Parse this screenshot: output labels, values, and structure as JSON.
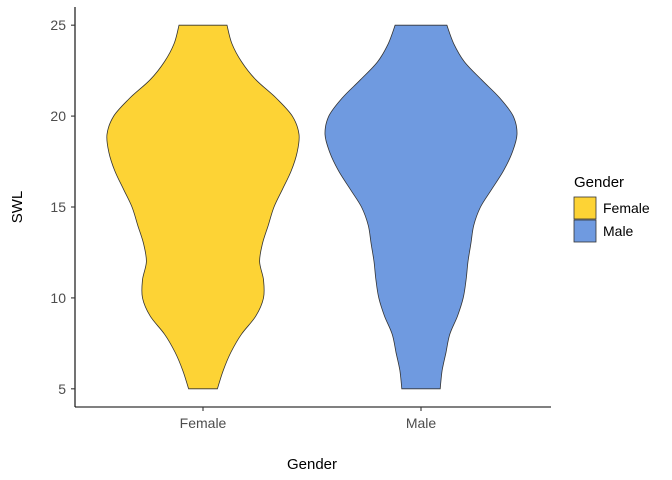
{
  "chart_data": {
    "type": "violin",
    "title": "",
    "xlabel": "Gender",
    "ylabel": "SWL",
    "ylim": [
      4,
      26
    ],
    "y_ticks": [
      5,
      10,
      15,
      20,
      25
    ],
    "grid": false,
    "legend": {
      "title": "Gender",
      "position": "right",
      "entries": [
        "Female",
        "Male"
      ]
    },
    "categories": [
      "Female",
      "Male"
    ],
    "colors": {
      "Female": "#FDD335",
      "Male": "#6F9AE0"
    },
    "series": [
      {
        "name": "Female",
        "range": [
          5,
          25
        ],
        "density_profile": [
          {
            "y": 5,
            "w": 0.15
          },
          {
            "y": 6,
            "w": 0.21
          },
          {
            "y": 7,
            "w": 0.29
          },
          {
            "y": 8,
            "w": 0.4
          },
          {
            "y": 9,
            "w": 0.55
          },
          {
            "y": 10,
            "w": 0.63
          },
          {
            "y": 11,
            "w": 0.63
          },
          {
            "y": 12,
            "w": 0.59
          },
          {
            "y": 13,
            "w": 0.62
          },
          {
            "y": 14,
            "w": 0.68
          },
          {
            "y": 15,
            "w": 0.74
          },
          {
            "y": 16,
            "w": 0.83
          },
          {
            "y": 17,
            "w": 0.92
          },
          {
            "y": 18,
            "w": 0.98
          },
          {
            "y": 19,
            "w": 1.0
          },
          {
            "y": 20,
            "w": 0.93
          },
          {
            "y": 21,
            "w": 0.76
          },
          {
            "y": 22,
            "w": 0.55
          },
          {
            "y": 23,
            "w": 0.4
          },
          {
            "y": 24,
            "w": 0.3
          },
          {
            "y": 25,
            "w": 0.25
          }
        ]
      },
      {
        "name": "Male",
        "range": [
          5,
          25
        ],
        "density_profile": [
          {
            "y": 5,
            "w": 0.2
          },
          {
            "y": 6,
            "w": 0.22
          },
          {
            "y": 7,
            "w": 0.26
          },
          {
            "y": 8,
            "w": 0.3
          },
          {
            "y": 9,
            "w": 0.38
          },
          {
            "y": 10,
            "w": 0.44
          },
          {
            "y": 11,
            "w": 0.47
          },
          {
            "y": 12,
            "w": 0.49
          },
          {
            "y": 13,
            "w": 0.52
          },
          {
            "y": 14,
            "w": 0.55
          },
          {
            "y": 15,
            "w": 0.62
          },
          {
            "y": 16,
            "w": 0.74
          },
          {
            "y": 17,
            "w": 0.86
          },
          {
            "y": 18,
            "w": 0.95
          },
          {
            "y": 19,
            "w": 1.0
          },
          {
            "y": 20,
            "w": 0.96
          },
          {
            "y": 21,
            "w": 0.82
          },
          {
            "y": 22,
            "w": 0.63
          },
          {
            "y": 23,
            "w": 0.45
          },
          {
            "y": 24,
            "w": 0.34
          },
          {
            "y": 25,
            "w": 0.27
          }
        ]
      }
    ]
  }
}
